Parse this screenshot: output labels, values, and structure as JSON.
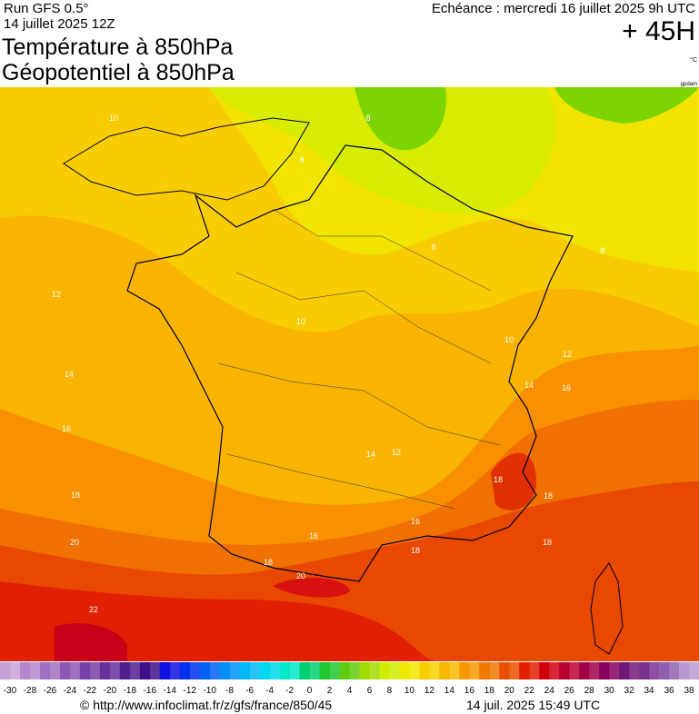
{
  "header": {
    "run": "Run GFS 0.5°",
    "run_date": "14 juillet 2025 12Z",
    "title_1": "Température à 850hPa",
    "title_2": "Géopotentiel à 850hPa",
    "valid": "Echéance : mercredi 16 juillet 2025 9h UTC",
    "lead": "+ 45H",
    "unit": "°C",
    "unit_2": "gpdam"
  },
  "contour_labels": [
    10,
    8,
    8,
    12,
    8,
    8,
    10,
    10,
    12,
    14,
    14,
    16,
    16,
    14,
    12,
    18,
    18,
    18,
    16,
    16,
    18,
    18,
    20,
    18,
    20,
    22
  ],
  "colorbar": {
    "labels": [
      -30,
      -28,
      -26,
      -24,
      -22,
      -20,
      -18,
      -16,
      -14,
      -12,
      -10,
      -8,
      -6,
      -4,
      -2,
      0,
      2,
      4,
      6,
      8,
      10,
      12,
      14,
      16,
      18,
      20,
      22,
      24,
      26,
      28,
      30,
      32,
      34,
      36,
      38
    ],
    "colors": [
      "#c8a0d8",
      "#b488cc",
      "#a070c0",
      "#8c58b4",
      "#7840a8",
      "#64309c",
      "#502090",
      "#401088",
      "#1010e0",
      "#0030f0",
      "#0060f8",
      "#0090f8",
      "#00b8f8",
      "#00d8f0",
      "#00e8c8",
      "#00d070",
      "#20c830",
      "#60cc10",
      "#a0dc00",
      "#d0ec00",
      "#f0e800",
      "#f8d000",
      "#f8b800",
      "#f89800",
      "#f07800",
      "#e85000",
      "#e02000",
      "#d00010",
      "#b80030",
      "#a00048",
      "#880060",
      "#701878",
      "#783090",
      "#9060b0",
      "#b898d0"
    ]
  },
  "footer": {
    "url": "© http://www.infoclimat.fr/z/gfs/france/850/45",
    "stamp": "14 juil. 2025 15:49 UTC"
  }
}
